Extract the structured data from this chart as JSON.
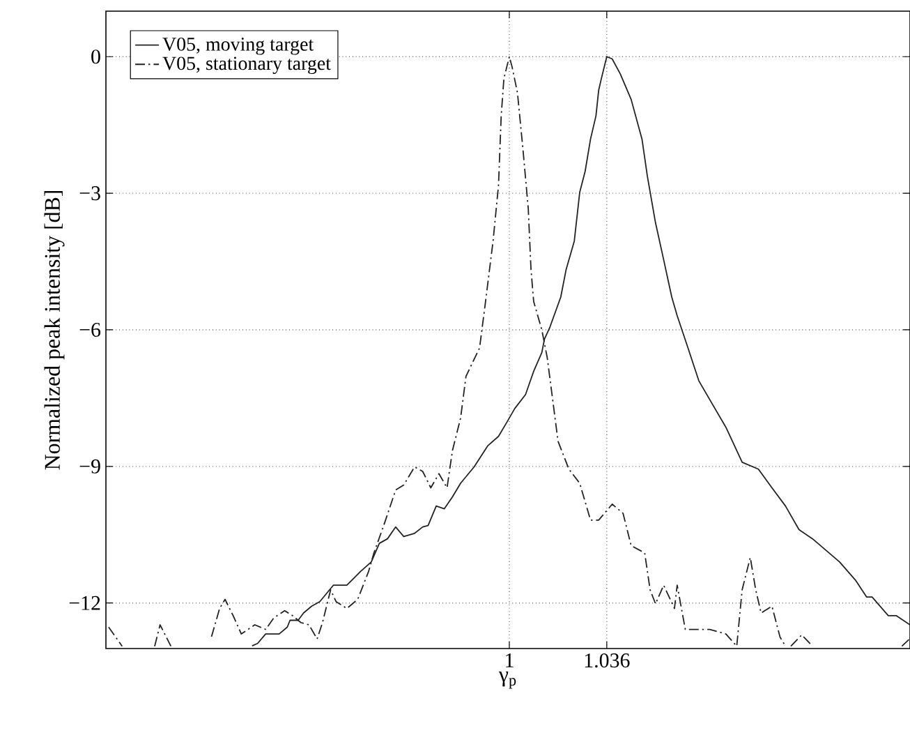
{
  "chart_data": {
    "type": "line",
    "xlabel": "γ$_{p}$",
    "ylabel": "Normalized peak intensity [dB]",
    "xlim": [
      0.851,
      1.148
    ],
    "ylim": [
      -13,
      1
    ],
    "xticks": [
      1,
      1.036
    ],
    "yticks": [
      {
        "value": -12,
        "label": "−12"
      },
      {
        "value": -9,
        "label": "−9"
      },
      {
        "value": -6,
        "label": "−6"
      },
      {
        "value": -3,
        "label": "−3"
      },
      0
    ],
    "grid": true,
    "legend": "top left",
    "series": [
      {
        "name": "V05, moving target",
        "color": "#222222",
        "line_style": "solid",
        "x": [
          0.905,
          0.907,
          0.91,
          0.915,
          0.918,
          0.919,
          0.922,
          0.924,
          0.927,
          0.93,
          0.935,
          0.94,
          0.945,
          0.949,
          0.952,
          0.955,
          0.958,
          0.961,
          0.965,
          0.968,
          0.97,
          0.973,
          0.976,
          0.979,
          0.982,
          0.987,
          0.992,
          0.996,
          0.999,
          1.002,
          1.006,
          1.009,
          1.012,
          1.013,
          1.015,
          1.019,
          1.021,
          1.024,
          1.026,
          1.028,
          1.03,
          1.032,
          1.033,
          1.034,
          1.036,
          1.038,
          1.041,
          1.045,
          1.049,
          1.051,
          1.054,
          1.057,
          1.06,
          1.062,
          1.066,
          1.07,
          1.074,
          1.08,
          1.086,
          1.092,
          1.097,
          1.102,
          1.107,
          1.112,
          1.122,
          1.128,
          1.132,
          1.134,
          1.14,
          1.143,
          1.148
        ],
        "values": [
          -12.94,
          -12.89,
          -12.68,
          -12.68,
          -12.53,
          -12.38,
          -12.38,
          -12.22,
          -12.07,
          -11.97,
          -11.61,
          -11.61,
          -11.31,
          -11.1,
          -10.69,
          -10.59,
          -10.33,
          -10.54,
          -10.47,
          -10.33,
          -10.3,
          -9.87,
          -9.93,
          -9.67,
          -9.37,
          -9.01,
          -8.55,
          -8.34,
          -8.04,
          -7.73,
          -7.42,
          -6.91,
          -6.5,
          -6.2,
          -5.94,
          -5.28,
          -4.67,
          -4.05,
          -2.98,
          -2.52,
          -1.81,
          -1.3,
          -0.74,
          -0.48,
          0,
          -0.05,
          -0.38,
          -0.94,
          -1.81,
          -2.63,
          -3.65,
          -4.46,
          -5.28,
          -5.69,
          -6.4,
          -7.12,
          -7.53,
          -8.14,
          -8.91,
          -9.06,
          -9.47,
          -9.87,
          -10.39,
          -10.59,
          -11.1,
          -11.51,
          -11.87,
          -11.87,
          -12.28,
          -12.28,
          -12.48
        ]
      },
      {
        "name": "V05, stationary target",
        "color": "#222222",
        "line_style": "dashdot",
        "x": [
          0.852,
          0.857,
          0.863,
          0.869,
          0.871,
          0.875,
          0.882,
          0.89,
          0.893,
          0.895,
          0.898,
          0.901,
          0.906,
          0.91,
          0.913,
          0.917,
          0.92,
          0.923,
          0.926,
          0.929,
          0.931,
          0.934,
          0.936,
          0.94,
          0.944,
          0.948,
          0.95,
          0.954,
          0.958,
          0.961,
          0.965,
          0.968,
          0.971,
          0.974,
          0.977,
          0.979,
          0.982,
          0.984,
          0.989,
          0.991,
          0.994,
          0.996,
          0.997,
          0.998,
          1.0,
          1.001,
          1.003,
          1.005,
          1.007,
          1.008,
          1.009,
          1.012,
          1.014,
          1.018,
          1.022,
          1.026,
          1.03,
          1.033,
          1.038,
          1.042,
          1.045,
          1.05,
          1.052,
          1.054,
          1.057,
          1.061,
          1.062,
          1.065,
          1.069,
          1.074,
          1.08,
          1.084,
          1.086,
          1.089,
          1.091,
          1.093,
          1.097,
          1.1,
          1.102,
          1.103,
          1.104,
          1.108,
          1.112,
          1.128,
          1.145,
          1.148
        ],
        "values": [
          -12.53,
          -12.95,
          null,
          -12.95,
          -12.48,
          -12.95,
          null,
          -12.74,
          -12.12,
          -11.92,
          -12.28,
          -12.68,
          -12.48,
          -12.58,
          -12.33,
          -12.17,
          -12.28,
          -12.43,
          -12.48,
          -12.79,
          -12.43,
          -11.71,
          -11.97,
          -12.12,
          -11.92,
          -11.31,
          -10.9,
          -10.23,
          -9.52,
          -9.41,
          -9.01,
          -9.11,
          -9.47,
          -9.16,
          -9.47,
          -8.65,
          -7.94,
          -7.02,
          -6.4,
          -5.48,
          -4.05,
          -2.83,
          -1.3,
          -0.48,
          0,
          -0.22,
          -0.79,
          -2.01,
          -3.34,
          -4.67,
          -5.38,
          -6.0,
          -6.61,
          -8.45,
          -9.06,
          -9.37,
          -10.18,
          -10.18,
          -9.83,
          -10.03,
          -10.74,
          -10.9,
          -11.71,
          -12.02,
          -11.61,
          -12.12,
          -11.61,
          -12.58,
          -12.58,
          -12.58,
          -12.68,
          -12.95,
          -11.71,
          -11.0,
          -11.71,
          -12.22,
          -12.07,
          -12.75,
          -12.95,
          null,
          -12.95,
          -12.7,
          -12.95,
          null,
          -12.95,
          -12.78
        ]
      }
    ]
  }
}
